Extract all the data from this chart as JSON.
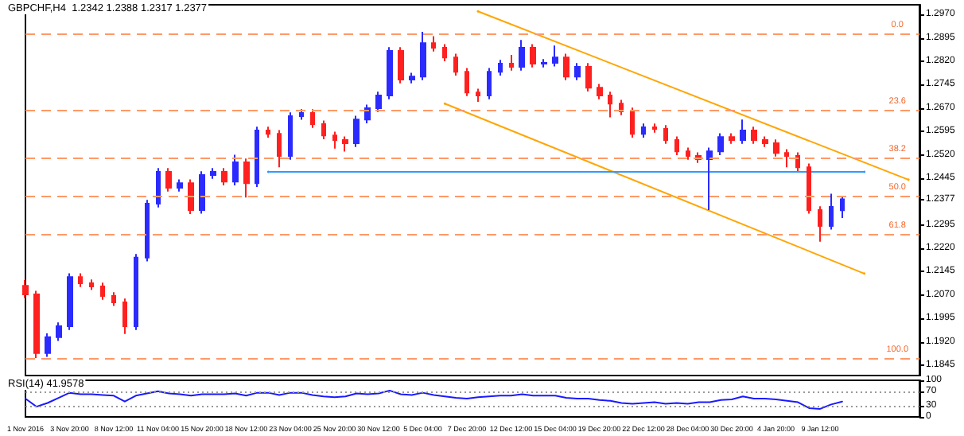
{
  "chart_data": [
    {
      "type": "candlestick",
      "title": "GBPCHF,H4  1.2342 1.2388 1.2317 1.2377",
      "categories": [
        "1 Nov 2016",
        null,
        null,
        null,
        "3 Nov 20:00",
        null,
        null,
        null,
        "8 Nov 12:00",
        null,
        null,
        null,
        "11 Nov 04:00",
        null,
        null,
        null,
        "15 Nov 20:00",
        null,
        null,
        null,
        "18 Nov 12:00",
        null,
        null,
        null,
        "23 Nov 04:00",
        null,
        null,
        null,
        "25 Nov 20:00",
        null,
        null,
        null,
        "30 Nov 12:00",
        null,
        null,
        null,
        "5 Dec 04:00",
        null,
        null,
        null,
        "7 Dec 20:00",
        null,
        null,
        null,
        "12 Dec 12:00",
        null,
        null,
        null,
        "15 Dec 04:00",
        null,
        null,
        null,
        "19 Dec 20:00",
        null,
        null,
        null,
        "22 Dec 12:00",
        null,
        null,
        null,
        "28 Dec 04:00",
        null,
        null,
        null,
        "30 Dec 20:00",
        null,
        null,
        null,
        "4 Jan 20:00",
        null,
        null,
        null,
        "9 Jan 12:00",
        null,
        null,
        null,
        null,
        null,
        null,
        null,
        null,
        null
      ],
      "ohlc": [
        [
          1.21,
          1.2118,
          1.206,
          1.2072
        ],
        [
          1.2072,
          1.2084,
          1.1868,
          1.1884
        ],
        [
          1.1884,
          1.1947,
          1.1872,
          1.1935
        ],
        [
          1.1935,
          1.1982,
          1.1923,
          1.197
        ],
        [
          1.197,
          1.214,
          1.1958,
          1.2128
        ],
        [
          1.2128,
          1.214,
          1.2096,
          1.2108
        ],
        [
          1.2108,
          1.212,
          1.2086,
          1.2098
        ],
        [
          1.2098,
          1.211,
          1.2055,
          1.2067
        ],
        [
          1.2067,
          1.2079,
          1.2035,
          1.2047
        ],
        [
          1.2047,
          1.2059,
          1.1945,
          1.197
        ],
        [
          1.197,
          1.2202,
          1.1958,
          1.219
        ],
        [
          1.219,
          1.2375,
          1.2178,
          1.2363
        ],
        [
          1.2363,
          1.2477,
          1.2351,
          1.2465
        ],
        [
          1.2465,
          1.2477,
          1.2402,
          1.2414
        ],
        [
          1.2414,
          1.2441,
          1.2402,
          1.2429
        ],
        [
          1.2429,
          1.2441,
          1.233,
          1.2343
        ],
        [
          1.2343,
          1.2467,
          1.2331,
          1.2455
        ],
        [
          1.2455,
          1.2477,
          1.2443,
          1.2465
        ],
        [
          1.2465,
          1.2477,
          1.2422,
          1.2434
        ],
        [
          1.2434,
          1.252,
          1.2422,
          1.2496
        ],
        [
          1.2496,
          1.2508,
          1.2383,
          1.2429
        ],
        [
          1.2429,
          1.261,
          1.2417,
          1.2598
        ],
        [
          1.2598,
          1.261,
          1.2575,
          1.2587
        ],
        [
          1.2587,
          1.2599,
          1.248,
          1.2516
        ],
        [
          1.2516,
          1.2656,
          1.2504,
          1.2644
        ],
        [
          1.2644,
          1.2666,
          1.2632,
          1.2654
        ],
        [
          1.2654,
          1.2666,
          1.2606,
          1.2618
        ],
        [
          1.2618,
          1.263,
          1.257,
          1.2582
        ],
        [
          1.2582,
          1.2594,
          1.254,
          1.2567
        ],
        [
          1.2567,
          1.2579,
          1.253,
          1.2557
        ],
        [
          1.2557,
          1.2645,
          1.2545,
          1.2633
        ],
        [
          1.2633,
          1.2681,
          1.2621,
          1.2669
        ],
        [
          1.2669,
          1.2722,
          1.2657,
          1.271
        ],
        [
          1.271,
          1.2865,
          1.2698,
          1.2853
        ],
        [
          1.2853,
          1.2865,
          1.2749,
          1.2761
        ],
        [
          1.2761,
          1.2783,
          1.2749,
          1.2771
        ],
        [
          1.2771,
          1.2914,
          1.2759,
          1.2878
        ],
        [
          1.2878,
          1.29,
          1.2851,
          1.2863
        ],
        [
          1.2863,
          1.2875,
          1.282,
          1.2832
        ],
        [
          1.2832,
          1.2844,
          1.2774,
          1.2786
        ],
        [
          1.2786,
          1.2798,
          1.2708,
          1.272
        ],
        [
          1.272,
          1.2732,
          1.269,
          1.271
        ],
        [
          1.271,
          1.2798,
          1.2698,
          1.2786
        ],
        [
          1.2786,
          1.2824,
          1.2774,
          1.2812
        ],
        [
          1.2812,
          1.284,
          1.279,
          1.2802
        ],
        [
          1.2802,
          1.2888,
          1.279,
          1.2863
        ],
        [
          1.2863,
          1.2875,
          1.28,
          1.2812
        ],
        [
          1.2812,
          1.2827,
          1.28,
          1.2815
        ],
        [
          1.2815,
          1.287,
          1.2803,
          1.2832
        ],
        [
          1.2832,
          1.2844,
          1.2759,
          1.2771
        ],
        [
          1.2771,
          1.2814,
          1.2759,
          1.2802
        ],
        [
          1.2802,
          1.2814,
          1.2723,
          1.2735
        ],
        [
          1.2735,
          1.2747,
          1.2698,
          1.271
        ],
        [
          1.271,
          1.2722,
          1.264,
          1.2684
        ],
        [
          1.2684,
          1.2696,
          1.2647,
          1.2659
        ],
        [
          1.2659,
          1.2671,
          1.2575,
          1.2587
        ],
        [
          1.2587,
          1.262,
          1.2575,
          1.2608
        ],
        [
          1.2608,
          1.262,
          1.2591,
          1.2603
        ],
        [
          1.2603,
          1.2615,
          1.2555,
          1.2567
        ],
        [
          1.2567,
          1.2579,
          1.2519,
          1.2531
        ],
        [
          1.2531,
          1.2543,
          1.2504,
          1.2516
        ],
        [
          1.2516,
          1.2528,
          1.2494,
          1.2506
        ],
        [
          1.2506,
          1.2543,
          1.2343,
          1.2531
        ],
        [
          1.2531,
          1.2589,
          1.2519,
          1.2577
        ],
        [
          1.2577,
          1.2589,
          1.2555,
          1.2567
        ],
        [
          1.2567,
          1.2633,
          1.2555,
          1.2598
        ],
        [
          1.2598,
          1.261,
          1.2555,
          1.2567
        ],
        [
          1.2567,
          1.2579,
          1.2545,
          1.2557
        ],
        [
          1.2557,
          1.2569,
          1.2514,
          1.2526
        ],
        [
          1.2526,
          1.2538,
          1.248,
          1.2516
        ],
        [
          1.2516,
          1.2528,
          1.2468,
          1.248
        ],
        [
          1.248,
          1.2492,
          1.2331,
          1.2343
        ],
        [
          1.2343,
          1.2355,
          1.2241,
          1.2292
        ],
        [
          1.2292,
          1.2395,
          1.228,
          1.2353
        ],
        [
          1.2342,
          1.2388,
          1.2317,
          1.2377
        ],
        null,
        null,
        null,
        null,
        null,
        null,
        null
      ],
      "series": [
        {
          "type": "line",
          "color": "#ffa500",
          "values": [
            null,
            null,
            null,
            null,
            null,
            null,
            null,
            null,
            null,
            null,
            null,
            null,
            null,
            null,
            null,
            null,
            null,
            null,
            null,
            null,
            null,
            null,
            null,
            null,
            null,
            null,
            null,
            null,
            null,
            null,
            null,
            null,
            null,
            null,
            null,
            null,
            null,
            null,
            null,
            null,
            null,
            1.298,
            null,
            null,
            null,
            null,
            null,
            null,
            null,
            null,
            null,
            null,
            null,
            null,
            null,
            null,
            null,
            null,
            null,
            null,
            null,
            null,
            null,
            null,
            null,
            null,
            null,
            null,
            null,
            null,
            null,
            null,
            null,
            null,
            null,
            null,
            null,
            null,
            null,
            null,
            1.244,
            null
          ]
        },
        {
          "type": "line",
          "color": "#ffa500",
          "values": [
            null,
            null,
            null,
            null,
            null,
            null,
            null,
            null,
            null,
            null,
            null,
            null,
            null,
            null,
            null,
            null,
            null,
            null,
            null,
            null,
            null,
            null,
            null,
            null,
            null,
            null,
            null,
            null,
            null,
            null,
            null,
            null,
            null,
            null,
            null,
            null,
            null,
            null,
            1.2684,
            null,
            null,
            null,
            null,
            null,
            null,
            null,
            null,
            null,
            null,
            null,
            null,
            null,
            null,
            null,
            null,
            null,
            null,
            null,
            null,
            null,
            null,
            null,
            null,
            null,
            null,
            null,
            null,
            null,
            null,
            null,
            null,
            null,
            null,
            null,
            null,
            null,
            1.2139,
            null,
            null,
            null,
            null,
            null
          ]
        },
        {
          "type": "line",
          "color": "#3399ff",
          "values": [
            null,
            null,
            null,
            null,
            null,
            null,
            null,
            null,
            null,
            null,
            null,
            null,
            null,
            null,
            null,
            null,
            null,
            null,
            null,
            null,
            null,
            null,
            1.2465,
            null,
            null,
            null,
            null,
            null,
            null,
            null,
            null,
            null,
            null,
            null,
            null,
            null,
            null,
            null,
            null,
            null,
            null,
            null,
            null,
            null,
            null,
            null,
            null,
            null,
            null,
            null,
            null,
            null,
            null,
            null,
            null,
            null,
            null,
            null,
            null,
            null,
            null,
            null,
            null,
            null,
            null,
            null,
            null,
            null,
            null,
            null,
            null,
            null,
            null,
            null,
            null,
            null,
            1.2465,
            null,
            null,
            null,
            null,
            null
          ]
        }
      ],
      "ref_lines": [
        {
          "axis": "y",
          "value": 1.2909,
          "color": "#ff9966",
          "line_style": "dashed"
        },
        {
          "axis": "y",
          "value": 1.2663,
          "color": "#ff9966",
          "line_style": "dashed"
        },
        {
          "axis": "y",
          "value": 1.2511,
          "color": "#ff9966",
          "line_style": "dashed"
        },
        {
          "axis": "y",
          "value": 1.2389,
          "color": "#ff9966",
          "line_style": "dashed"
        },
        {
          "axis": "y",
          "value": 1.2266,
          "color": "#ff9966",
          "line_style": "dashed"
        },
        {
          "axis": "y",
          "value": 1.1868,
          "color": "#ff9966",
          "line_style": "dashed"
        }
      ],
      "annotations": [
        "0.0",
        "23.6",
        "38.2",
        "50.0",
        "61.8",
        "100.0"
      ],
      "ylim": [
        1.1812,
        1.3001
      ],
      "yticks": [
        {
          "value": 1.297,
          "label": "1.2970"
        },
        1.2895,
        {
          "value": 1.282,
          "label": "1.2820"
        },
        1.2745,
        {
          "value": 1.267,
          "label": "1.2670"
        },
        1.2595,
        {
          "value": 1.252,
          "label": "1.2520"
        },
        1.2445,
        1.2377,
        1.2295,
        {
          "value": 1.222,
          "label": "1.2220"
        },
        1.2145,
        {
          "value": 1.207,
          "label": "1.2070"
        },
        1.1995,
        {
          "value": 1.192,
          "label": "1.1920"
        },
        1.1845
      ]
    },
    {
      "type": "line",
      "title": "RSI(14) 41.9578",
      "color": "#1a1aff",
      "categories": [
        null,
        null,
        null,
        null,
        null,
        null,
        null,
        null,
        null,
        null,
        null,
        null,
        null,
        null,
        null,
        null,
        null,
        null,
        null,
        null,
        null,
        null,
        null,
        null,
        null,
        null,
        null,
        null,
        null,
        null,
        null,
        null,
        null,
        null,
        null,
        null,
        null,
        null,
        null,
        null,
        null,
        null,
        null,
        null,
        null,
        null,
        null,
        null,
        null,
        null,
        null,
        null,
        null,
        null,
        null,
        null,
        null,
        null,
        null,
        null,
        null,
        null,
        null,
        null,
        null,
        null,
        null,
        null,
        null,
        null,
        null,
        null,
        null,
        null,
        null,
        null,
        null,
        null,
        null,
        null,
        null,
        null
      ],
      "values": [
        50,
        28,
        38,
        52,
        66,
        62,
        62,
        60,
        58,
        42,
        58,
        64,
        70,
        64,
        62,
        58,
        62,
        62,
        62,
        64,
        58,
        66,
        66,
        60,
        66,
        66,
        60,
        56,
        54,
        56,
        64,
        62,
        64,
        72,
        62,
        60,
        66,
        60,
        56,
        52,
        50,
        54,
        56,
        58,
        58,
        62,
        58,
        58,
        58,
        52,
        50,
        50,
        46,
        44,
        38,
        36,
        38,
        40,
        36,
        38,
        36,
        40,
        40,
        46,
        48,
        56,
        50,
        50,
        48,
        44,
        40,
        24,
        22,
        34,
        42,
        null,
        null,
        null,
        null,
        null,
        null,
        null
      ],
      "ref_lines": [
        {
          "axis": "y",
          "value": 70,
          "color": "#999999",
          "line_style": "dotted"
        },
        {
          "axis": "y",
          "value": 30,
          "color": "#999999",
          "line_style": "dotted"
        }
      ],
      "ylim": [
        0,
        100
      ],
      "yticks": [
        100,
        70,
        30,
        0
      ]
    }
  ]
}
